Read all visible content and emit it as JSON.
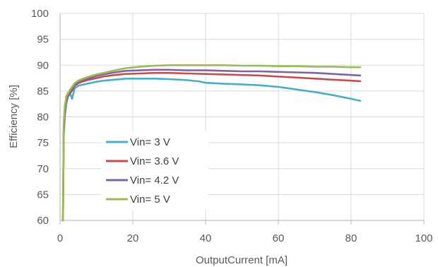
{
  "chart_data": {
    "type": "line",
    "title": "",
    "xlabel": "OutputCurrent  [mA]",
    "ylabel": "Efficiency [%]",
    "xlim": [
      0,
      100
    ],
    "ylim": [
      60,
      100
    ],
    "xticks": [
      0,
      20,
      40,
      60,
      80,
      100
    ],
    "yticks": [
      60,
      65,
      70,
      75,
      80,
      85,
      90,
      95,
      100
    ],
    "grid": true,
    "legend_position": "bottom-left",
    "series": [
      {
        "name": "Vin= 3 V",
        "color": "#4BACC6",
        "x": [
          0.8,
          1.0,
          1.3,
          1.7,
          2.2,
          2.8,
          3.3,
          4,
          5,
          6,
          8,
          10,
          12,
          15,
          18,
          22,
          26,
          30,
          35,
          38,
          40,
          45,
          50,
          55,
          60,
          65,
          70,
          75,
          80,
          82.5
        ],
        "y": [
          60,
          76,
          80,
          82.5,
          84,
          84.5,
          83.5,
          85.5,
          86,
          86.2,
          86.5,
          86.8,
          87,
          87.2,
          87.4,
          87.4,
          87.4,
          87.3,
          87.1,
          86.9,
          86.6,
          86.4,
          86.3,
          86.1,
          85.8,
          85.3,
          84.8,
          84.2,
          83.5,
          83.1
        ]
      },
      {
        "name": "Vin= 3.6 V",
        "color": "#C0504D",
        "x": [
          0.8,
          1.0,
          1.3,
          1.7,
          2.2,
          2.8,
          3.5,
          4,
          5,
          6,
          8,
          10,
          12,
          15,
          18,
          22,
          26,
          30,
          35,
          40,
          45,
          50,
          55,
          60,
          65,
          70,
          75,
          80,
          82.5
        ],
        "y": [
          60,
          77,
          81,
          83,
          84,
          84.6,
          85.3,
          86,
          86.5,
          86.8,
          87.2,
          87.5,
          87.8,
          88.1,
          88.3,
          88.4,
          88.5,
          88.5,
          88.4,
          88.3,
          88.2,
          88.1,
          88.0,
          87.8,
          87.6,
          87.4,
          87.2,
          87.0,
          86.9
        ]
      },
      {
        "name": "Vin= 4.2 V",
        "color": "#8064A2",
        "x": [
          0.8,
          1.0,
          1.3,
          1.7,
          2.2,
          2.8,
          3.5,
          4,
          5,
          6,
          8,
          10,
          12,
          15,
          18,
          22,
          26,
          30,
          35,
          40,
          45,
          50,
          55,
          60,
          65,
          70,
          75,
          80,
          82.5
        ],
        "y": [
          60,
          78,
          81.5,
          83.5,
          84.3,
          85,
          85.6,
          86.2,
          86.8,
          87.1,
          87.5,
          87.9,
          88.2,
          88.6,
          88.9,
          89.0,
          89.1,
          89.1,
          89.0,
          89.0,
          88.9,
          88.8,
          88.8,
          88.7,
          88.6,
          88.5,
          88.3,
          88.1,
          88.0
        ]
      },
      {
        "name": "Vin= 5 V",
        "color": "#9BBB59",
        "x": [
          0.8,
          1.0,
          1.3,
          1.7,
          2.2,
          2.8,
          3.5,
          4,
          5,
          6,
          8,
          10,
          12,
          15,
          18,
          22,
          26,
          30,
          35,
          40,
          45,
          50,
          55,
          60,
          65,
          70,
          75,
          80,
          82.5
        ],
        "y": [
          60,
          79,
          82,
          84,
          84.6,
          85.3,
          86,
          86.5,
          87.0,
          87.3,
          87.8,
          88.2,
          88.5,
          89.0,
          89.4,
          89.7,
          89.9,
          90.0,
          90.0,
          90.0,
          90.0,
          89.9,
          89.9,
          89.8,
          89.8,
          89.7,
          89.7,
          89.6,
          89.6
        ]
      }
    ]
  }
}
